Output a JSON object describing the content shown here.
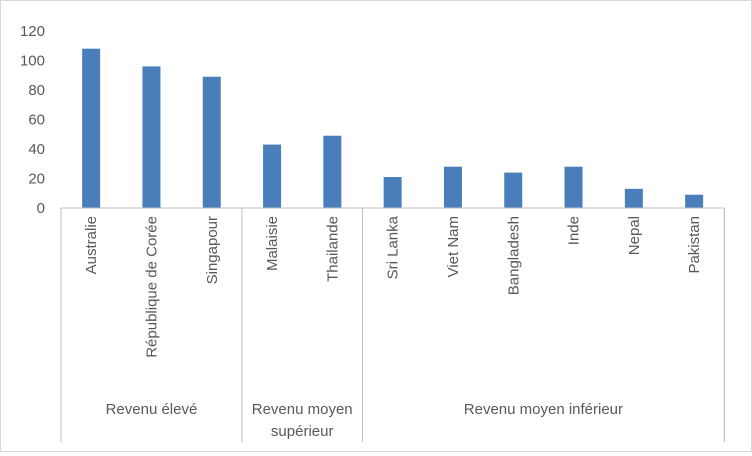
{
  "chart_data": {
    "type": "bar",
    "categories": [
      "Australie",
      "République de Corée",
      "Singapour",
      "Malaisie",
      "Thailande",
      "Sri Lanka",
      "Viet Nam",
      "Bangladesh",
      "Inde",
      "Nepal",
      "Pakistan"
    ],
    "groups": [
      {
        "label_lines": [
          "Revenu élevé"
        ],
        "count": 3
      },
      {
        "label_lines": [
          "Revenu moyen",
          "supérieur"
        ],
        "count": 2
      },
      {
        "label_lines": [
          "Revenu moyen inférieur"
        ],
        "count": 6
      }
    ],
    "series": [
      {
        "values": [
          108,
          96,
          89,
          43,
          49,
          21,
          28,
          24,
          28,
          13,
          9
        ]
      }
    ],
    "yticks": [
      "0",
      "20",
      "40",
      "60",
      "80",
      "100",
      "120"
    ],
    "ylim": [
      0,
      120
    ],
    "title": "",
    "xlabel": "",
    "ylabel": "",
    "grid": false,
    "legend": "none",
    "colors": {
      "bar": "#4a7ebb",
      "axis": "#bfbfbf",
      "text": "#595959",
      "border": "#d9d9d9"
    }
  }
}
